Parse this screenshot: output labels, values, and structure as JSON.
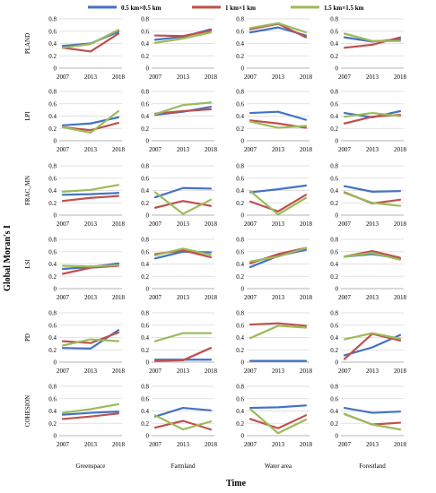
{
  "chart_data": {
    "type": "line",
    "xlabel": "Time",
    "ylabel": "Global Moran's I",
    "x": [
      "2007",
      "2013",
      "2018"
    ],
    "ylim": [
      0,
      0.8
    ],
    "yticks": [
      "0",
      "0.2",
      "0.4",
      "0.6",
      "0.8"
    ],
    "grid": "horizontal",
    "legend_position": "top",
    "series": [
      {
        "name": "0.5 km×0.5 km",
        "color": "#4472c4"
      },
      {
        "name": "1 km×1 km",
        "color": "#c0504d"
      },
      {
        "name": "1.5 km×1.5 km",
        "color": "#9bbb59"
      }
    ],
    "columns": [
      "Greenspace",
      "Farmland",
      "Water area",
      "Forestland"
    ],
    "rows": [
      "PLAND",
      "LPI",
      "FRAC_MN",
      "LSI",
      "PD",
      "COHESION"
    ],
    "panels": {
      "PLAND": [
        [
          [
            0.36,
            0.4,
            0.59
          ],
          [
            0.33,
            0.27,
            0.56
          ],
          [
            0.33,
            0.39,
            0.62
          ]
        ],
        [
          [
            0.46,
            0.51,
            0.63
          ],
          [
            0.53,
            0.52,
            0.61
          ],
          [
            0.41,
            0.48,
            0.58
          ]
        ],
        [
          [
            0.58,
            0.66,
            0.53
          ],
          [
            0.63,
            0.72,
            0.5
          ],
          [
            0.65,
            0.73,
            0.58
          ]
        ],
        [
          [
            0.5,
            0.43,
            0.47
          ],
          [
            0.33,
            0.38,
            0.5
          ],
          [
            0.56,
            0.44,
            0.44
          ]
        ]
      ],
      "LPI": [
        [
          [
            0.25,
            0.28,
            0.38
          ],
          [
            0.22,
            0.17,
            0.29
          ],
          [
            0.22,
            0.13,
            0.48
          ]
        ],
        [
          [
            0.42,
            0.47,
            0.55
          ],
          [
            0.44,
            0.48,
            0.51
          ],
          [
            0.43,
            0.58,
            0.62
          ]
        ],
        [
          [
            0.45,
            0.47,
            0.34
          ],
          [
            0.33,
            0.28,
            0.21
          ],
          [
            0.31,
            0.21,
            0.24
          ]
        ],
        [
          [
            0.45,
            0.38,
            0.48
          ],
          [
            0.28,
            0.39,
            0.42
          ],
          [
            0.39,
            0.45,
            0.4
          ]
        ]
      ],
      "FRAC_MN": [
        [
          [
            0.33,
            0.34,
            0.36
          ],
          [
            0.23,
            0.28,
            0.31
          ],
          [
            0.38,
            0.41,
            0.49
          ]
        ],
        [
          [
            0.29,
            0.44,
            0.43
          ],
          [
            0.12,
            0.23,
            0.15
          ],
          [
            0.37,
            0.02,
            0.25
          ]
        ],
        [
          [
            0.37,
            0.42,
            0.48
          ],
          [
            0.22,
            0.06,
            0.33
          ],
          [
            0.39,
            0.01,
            0.28
          ]
        ],
        [
          [
            0.47,
            0.38,
            0.39
          ],
          [
            0.37,
            0.19,
            0.25
          ],
          [
            0.36,
            0.2,
            0.15
          ]
        ]
      ],
      "LSI": [
        [
          [
            0.32,
            0.35,
            0.41
          ],
          [
            0.24,
            0.34,
            0.37
          ],
          [
            0.37,
            0.36,
            0.38
          ]
        ],
        [
          [
            0.49,
            0.6,
            0.59
          ],
          [
            0.56,
            0.62,
            0.51
          ],
          [
            0.54,
            0.65,
            0.55
          ]
        ],
        [
          [
            0.35,
            0.53,
            0.63
          ],
          [
            0.41,
            0.56,
            0.66
          ],
          [
            0.44,
            0.52,
            0.66
          ]
        ],
        [
          [
            0.52,
            0.56,
            0.49
          ],
          [
            0.52,
            0.61,
            0.5
          ],
          [
            0.52,
            0.58,
            0.47
          ]
        ]
      ],
      "PD": [
        [
          [
            0.23,
            0.22,
            0.52
          ],
          [
            0.34,
            0.31,
            0.48
          ],
          [
            0.27,
            0.37,
            0.34
          ]
        ],
        [
          [
            0.04,
            0.04,
            0.04
          ],
          [
            0.02,
            0.03,
            0.23
          ],
          [
            0.34,
            0.47,
            0.47
          ]
        ],
        [
          [
            0.02,
            0.02,
            0.02
          ],
          [
            0.61,
            0.63,
            0.59
          ],
          [
            0.39,
            0.59,
            0.56
          ]
        ],
        [
          [
            0.11,
            0.24,
            0.44
          ],
          [
            0.05,
            0.46,
            0.35
          ],
          [
            0.37,
            0.47,
            0.38
          ]
        ]
      ],
      "COHESION": [
        [
          [
            0.34,
            0.37,
            0.39
          ],
          [
            0.27,
            0.31,
            0.36
          ],
          [
            0.37,
            0.43,
            0.51
          ]
        ],
        [
          [
            0.31,
            0.45,
            0.41
          ],
          [
            0.13,
            0.24,
            0.1
          ],
          [
            0.33,
            0.1,
            0.23
          ]
        ],
        [
          [
            0.45,
            0.46,
            0.49
          ],
          [
            0.27,
            0.12,
            0.33
          ],
          [
            0.43,
            0.04,
            0.26
          ]
        ],
        [
          [
            0.45,
            0.37,
            0.39
          ],
          [
            0.35,
            0.18,
            0.21
          ],
          [
            0.35,
            0.18,
            0.1
          ]
        ]
      ]
    }
  }
}
